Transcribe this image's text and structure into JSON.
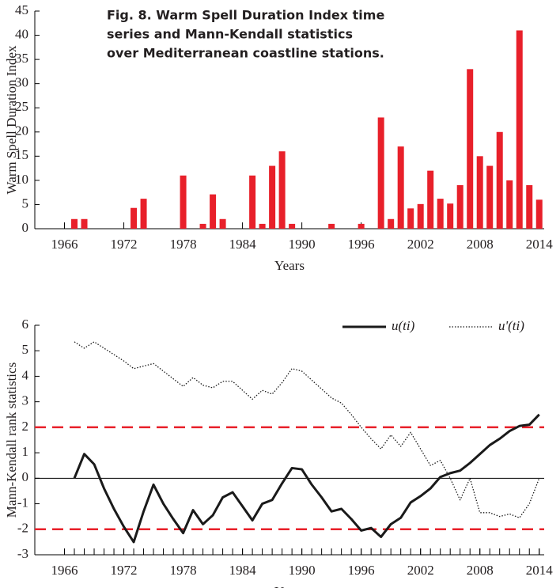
{
  "chart_data": [
    {
      "type": "bar",
      "title": [
        "Fig. 8. Warm Spell Duration Index time",
        "series and Mann-Kendall statistics",
        "over Mediterranean coastline stations."
      ],
      "xlabel": "Years",
      "ylabel": "Warm Spell Duration Index",
      "x": [
        1967,
        1968,
        1973,
        1974,
        1978,
        1980,
        1981,
        1982,
        1985,
        1986,
        1987,
        1988,
        1989,
        1993,
        1996,
        1998,
        1999,
        2000,
        2001,
        2002,
        2003,
        2004,
        2005,
        2006,
        2007,
        2008,
        2009,
        2010,
        2011,
        2012,
        2013,
        2014
      ],
      "values": [
        2,
        2,
        4.3,
        6.2,
        11,
        1,
        7.1,
        2,
        11,
        1,
        13,
        16,
        1,
        1,
        1,
        23,
        2,
        17,
        4.2,
        5.1,
        12,
        6.2,
        5.2,
        9,
        33,
        15,
        13,
        20,
        10,
        41,
        9,
        6
      ],
      "color": "#e8202a",
      "xlim": [
        1963,
        2014.5
      ],
      "xticks": [
        1966,
        1972,
        1978,
        1984,
        1990,
        1996,
        2002,
        2008,
        2014
      ],
      "ylim": [
        0,
        45
      ],
      "yticks": [
        0,
        5,
        10,
        15,
        20,
        25,
        30,
        35,
        40,
        45
      ]
    },
    {
      "type": "line",
      "xlabel": "Years",
      "ylabel": "Mann-Kendall rank statistics",
      "x": [
        1967,
        1968,
        1969,
        1970,
        1971,
        1972,
        1973,
        1974,
        1975,
        1976,
        1977,
        1978,
        1979,
        1980,
        1981,
        1982,
        1983,
        1984,
        1985,
        1986,
        1987,
        1988,
        1989,
        1990,
        1991,
        1992,
        1993,
        1994,
        1995,
        1996,
        1997,
        1998,
        1999,
        2000,
        2001,
        2002,
        2003,
        2004,
        2005,
        2006,
        2007,
        2008,
        2009,
        2010,
        2011,
        2012,
        2013,
        2014
      ],
      "series": [
        {
          "name": "u(ti)",
          "color": "#1a1a1a",
          "style": "solid",
          "values": [
            0,
            0.95,
            0.55,
            -0.4,
            -1.2,
            -1.9,
            -2.5,
            -1.3,
            -0.25,
            -1.0,
            -1.6,
            -2.15,
            -1.25,
            -1.8,
            -1.45,
            -0.75,
            -0.55,
            -1.1,
            -1.65,
            -1.0,
            -0.85,
            -0.2,
            0.4,
            0.35,
            -0.25,
            -0.75,
            -1.3,
            -1.2,
            -1.6,
            -2.05,
            -1.95,
            -2.3,
            -1.8,
            -1.55,
            -0.95,
            -0.7,
            -0.4,
            0.05,
            0.2,
            0.3,
            0.6,
            0.95,
            1.3,
            1.55,
            1.85,
            2.05,
            2.1,
            2.5
          ]
        },
        {
          "name": "u'(ti)",
          "color": "#1a1a1a",
          "style": "dotted",
          "values": [
            5.35,
            5.1,
            5.35,
            5.1,
            4.85,
            4.6,
            4.3,
            4.4,
            4.5,
            4.2,
            3.9,
            3.6,
            3.95,
            3.65,
            3.55,
            3.8,
            3.8,
            3.45,
            3.1,
            3.45,
            3.3,
            3.75,
            4.3,
            4.2,
            3.85,
            3.5,
            3.15,
            2.95,
            2.5,
            2.0,
            1.55,
            1.15,
            1.7,
            1.25,
            1.8,
            1.15,
            0.5,
            0.7,
            0,
            -0.85,
            0,
            -1.35,
            -1.35,
            -1.5,
            -1.4,
            -1.55,
            -1.0,
            0
          ]
        }
      ],
      "hlines": [
        {
          "value": 2,
          "color": "#e8202a",
          "style": "dashed"
        },
        {
          "value": -2,
          "color": "#e8202a",
          "style": "dashed"
        },
        {
          "value": 0,
          "color": "#000000",
          "style": "solid"
        }
      ],
      "legend": "upper right",
      "xlim": [
        1963,
        2014.5
      ],
      "xticks": [
        1966,
        1972,
        1978,
        1984,
        1990,
        1996,
        2002,
        2008,
        2014
      ],
      "ylim": [
        -3,
        6
      ],
      "yticks": [
        -3,
        -2,
        -1,
        0,
        1,
        2,
        3,
        4,
        5,
        6
      ]
    }
  ]
}
